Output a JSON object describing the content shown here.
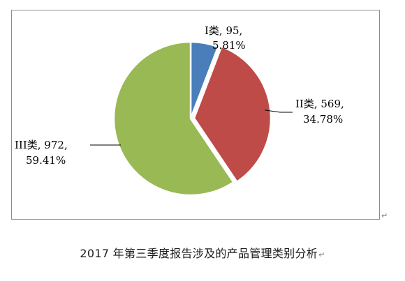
{
  "chart_data": {
    "type": "pie",
    "slices": [
      {
        "name": "I类",
        "value": 95,
        "percent": "5.81%",
        "color": "#4a7ebb"
      },
      {
        "name": "II类",
        "value": 569,
        "percent": "34.78%",
        "color": "#be4b48"
      },
      {
        "name": "III类",
        "value": 972,
        "percent": "59.41%",
        "color": "#98b954"
      }
    ]
  },
  "labels": [
    {
      "line1": "I类, 95,",
      "line2": "5.81%"
    },
    {
      "line1": "II类, 569,",
      "line2": "34.78%"
    },
    {
      "line1": "III类, 972,",
      "line2": "59.41%"
    }
  ],
  "caption": "2017 年第三季度报告涉及的产品管理类别分析",
  "marks": {
    "paragraph": "↵"
  }
}
